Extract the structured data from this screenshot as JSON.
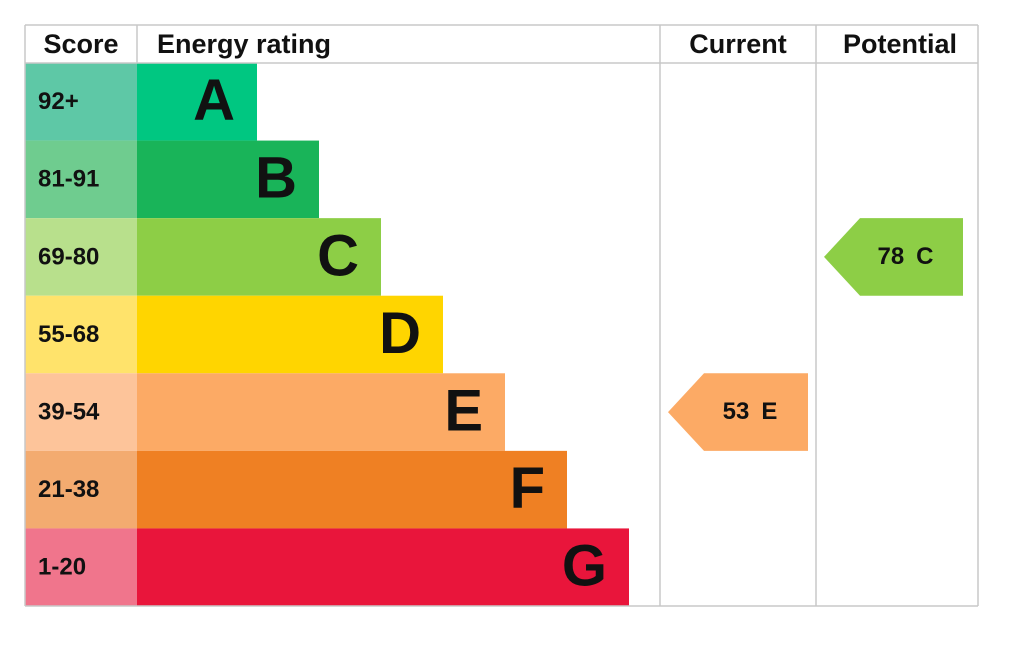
{
  "header": {
    "score": "Score",
    "rating": "Energy rating",
    "current": "Current",
    "potential": "Potential"
  },
  "bands": [
    {
      "score": "92+",
      "letter": "A",
      "color": "#00c781",
      "light": "#5ec8a6"
    },
    {
      "score": "81-91",
      "letter": "B",
      "color": "#19b459",
      "light": "#6fcc8f"
    },
    {
      "score": "69-80",
      "letter": "C",
      "color": "#8dce46",
      "light": "#b8e08c"
    },
    {
      "score": "55-68",
      "letter": "D",
      "color": "#ffd500",
      "light": "#ffe36b"
    },
    {
      "score": "39-54",
      "letter": "E",
      "color": "#fcaa65",
      "light": "#fdc49a"
    },
    {
      "score": "21-38",
      "letter": "F",
      "color": "#ef8023",
      "light": "#f3ab70"
    },
    {
      "score": "1-20",
      "letter": "G",
      "color": "#e9153b",
      "light": "#f0758c"
    }
  ],
  "current": {
    "value": 53,
    "letter": "E"
  },
  "potential": {
    "value": 78,
    "letter": "C"
  }
}
